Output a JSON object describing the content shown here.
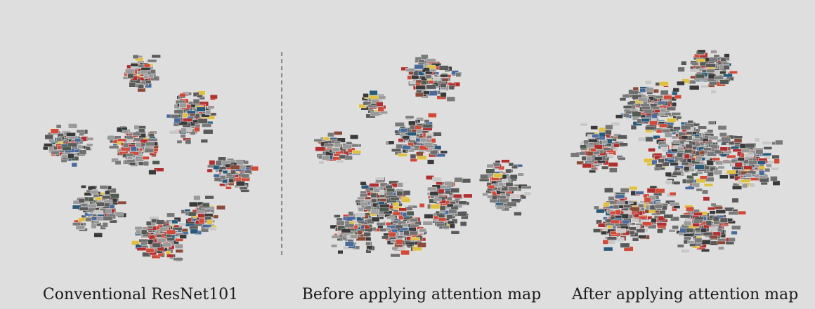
{
  "figure": {
    "panels": [
      {
        "caption": "Conventional ResNet101"
      },
      {
        "caption": "Before applying attention map"
      },
      {
        "caption": "After applying attention map"
      }
    ]
  },
  "colors": {
    "background": "#dedede",
    "divider": "#8a8a8a",
    "caption": "#1a1a1a",
    "thumb_palette": [
      "#3a3a3a",
      "#5a5a5a",
      "#7a7a7a",
      "#9a9a9a",
      "#2c3e5a",
      "#b03030",
      "#d04a3a",
      "#4a6a9a",
      "#6e6e6e",
      "#c8c8c8",
      "#8a4a3a",
      "#2a5a7a",
      "#e0c040",
      "#505a50"
    ]
  }
}
